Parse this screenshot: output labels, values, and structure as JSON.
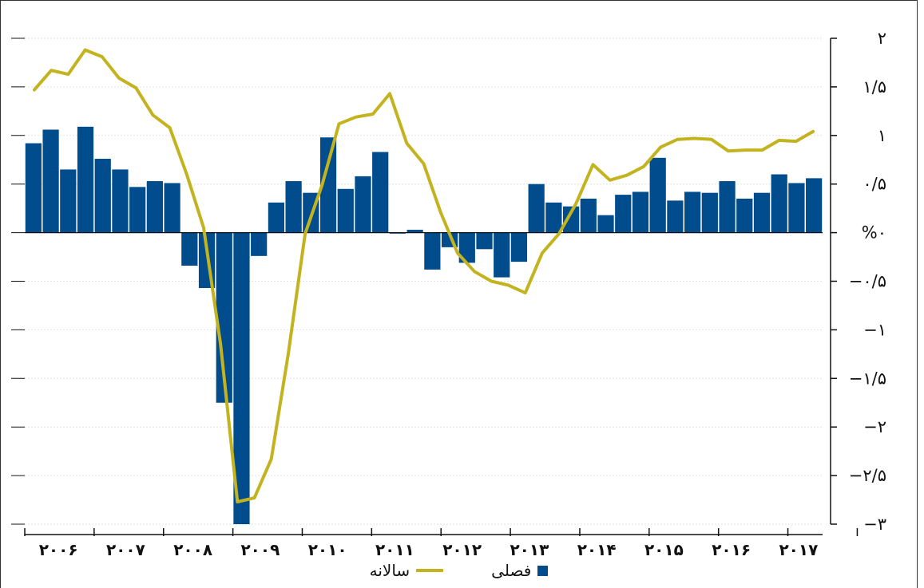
{
  "chart_data": {
    "type": "bar",
    "title": "",
    "xlabel": "",
    "ylabel": "",
    "ylim": [
      -3,
      2
    ],
    "y_ticks": [
      "۲",
      "۱/۵",
      "۱",
      "۰/۵",
      "%۰",
      "−۰/۵",
      "−۱",
      "−۱/۵",
      "−۲",
      "−۲/۵",
      "−۳"
    ],
    "y_tick_values": [
      2,
      1.5,
      1,
      0.5,
      0,
      -0.5,
      -1,
      -1.5,
      -2,
      -2.5,
      -3
    ],
    "y_axis_side": "right",
    "grid": true,
    "legend_position": "bottom",
    "x_year_labels": [
      "۲۰۰۶",
      "۲۰۰۷",
      "۲۰۰۸",
      "۲۰۰۹",
      "۲۰۱۰",
      "۲۰۱۱",
      "۲۰۱۲",
      "۲۰۱۳",
      "۲۰۱۴",
      "۲۰۱۵",
      "۲۰۱۶",
      "۲۰۱۷"
    ],
    "quarters_per_year": 4,
    "series": [
      {
        "name": "فصلی",
        "type": "bar",
        "color": "#004c8c",
        "values": [
          0.92,
          1.06,
          0.65,
          1.09,
          0.76,
          0.65,
          0.47,
          0.53,
          0.51,
          -0.34,
          -0.57,
          -1.75,
          -3.0,
          -0.24,
          0.31,
          0.53,
          0.41,
          0.98,
          0.45,
          0.58,
          0.83,
          -0.01,
          0.03,
          -0.38,
          -0.15,
          -0.31,
          -0.17,
          -0.46,
          -0.3,
          0.5,
          0.31,
          0.27,
          0.35,
          0.18,
          0.39,
          0.42,
          0.77,
          0.33,
          0.42,
          0.41,
          0.53,
          0.35,
          0.41,
          0.6,
          0.51,
          0.56
        ]
      },
      {
        "name": "سالانه",
        "type": "line",
        "color": "#c3b31f",
        "values": [
          1.47,
          1.67,
          1.63,
          1.88,
          1.81,
          1.59,
          1.49,
          1.21,
          1.08,
          0.6,
          0.05,
          -1.15,
          -2.77,
          -2.73,
          -2.33,
          -1.25,
          -0.01,
          0.49,
          1.12,
          1.19,
          1.22,
          1.43,
          0.92,
          0.71,
          0.21,
          -0.21,
          -0.4,
          -0.5,
          -0.54,
          -0.62,
          -0.21,
          -0.01,
          0.3,
          0.7,
          0.54,
          0.59,
          0.68,
          0.88,
          0.96,
          0.97,
          0.96,
          0.84,
          0.85,
          0.85,
          0.95,
          0.94,
          1.04
        ]
      }
    ]
  },
  "legend": {
    "bar_label": "فصلی",
    "line_label": "سالانه"
  }
}
